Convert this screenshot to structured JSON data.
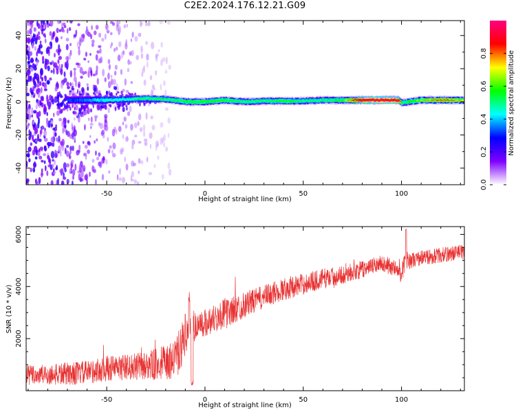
{
  "title": "C2E2.2024.176.12.21.G09",
  "chart_data": [
    {
      "type": "heatmap",
      "xlabel": "Height of straight line (km)",
      "ylabel": "Frequency (Hz)",
      "xlim": [
        -91,
        132
      ],
      "ylim": [
        -50,
        49
      ],
      "xticks": [
        -50,
        0,
        50,
        100
      ],
      "yticks": [
        -40,
        -20,
        0,
        20,
        40
      ],
      "grid": false,
      "colorbar": {
        "label": "Normalized spectral amplitude",
        "range": [
          0,
          1
        ],
        "ticks": [
          0.0,
          0.2,
          0.4,
          0.6,
          0.8
        ],
        "stops": [
          "#ffffff",
          "#7f00ff",
          "#0000ff",
          "#00ffff",
          "#00ff00",
          "#ffff00",
          "#ff0000",
          "#ff0080"
        ]
      },
      "ridge": {
        "description_free": true,
        "x": [
          -70,
          -60,
          -50,
          -40,
          -30,
          -20,
          -10,
          0,
          10,
          20,
          30,
          40,
          50,
          60,
          70,
          80,
          90,
          98,
          100,
          110,
          120,
          132
        ],
        "y": [
          1,
          1,
          1,
          1.5,
          2,
          1.5,
          0,
          0,
          1,
          0,
          0.5,
          0.5,
          0.5,
          1,
          1,
          1,
          1,
          1,
          -0.5,
          1,
          1,
          1
        ],
        "amplitude": [
          0.3,
          0.35,
          0.45,
          0.45,
          0.5,
          0.5,
          0.55,
          0.55,
          0.55,
          0.5,
          0.5,
          0.55,
          0.5,
          0.5,
          0.55,
          0.9,
          0.95,
          0.9,
          0.5,
          0.6,
          0.7,
          0.6
        ]
      },
      "noise_region_xlim": [
        -91,
        -18
      ]
    },
    {
      "type": "line",
      "xlabel": "Height of straight line (km)",
      "ylabel": "SNR (10 * v/v)",
      "xlim": [
        -91,
        132
      ],
      "ylim": [
        0,
        6300
      ],
      "xticks": [
        -50,
        0,
        50,
        100
      ],
      "yticks": [
        2000,
        4000,
        6000
      ],
      "grid": false,
      "line_color": "#e83030",
      "series": [
        {
          "x": [
            -91,
            -80,
            -70,
            -60,
            -50,
            -40,
            -30,
            -20,
            -15,
            -12,
            -10,
            -5,
            0,
            5,
            10,
            15,
            20,
            30,
            40,
            50,
            60,
            70,
            80,
            90,
            95,
            100,
            102,
            105,
            110,
            120,
            132
          ],
          "y": [
            600,
            600,
            650,
            700,
            850,
            900,
            950,
            1050,
            1200,
            1700,
            2200,
            2500,
            2600,
            2800,
            2950,
            3100,
            3300,
            3600,
            3900,
            4100,
            4300,
            4450,
            4650,
            4900,
            4750,
            4500,
            5000,
            5000,
            5100,
            5200,
            5350
          ],
          "noise_amplitude": [
            400,
            400,
            450,
            450,
            500,
            500,
            550,
            700,
            800,
            900,
            800,
            600,
            550,
            550,
            600,
            550,
            500,
            450,
            450,
            400,
            400,
            350,
            350,
            300,
            350,
            350,
            400,
            300,
            300,
            300,
            300
          ]
        }
      ]
    }
  ]
}
